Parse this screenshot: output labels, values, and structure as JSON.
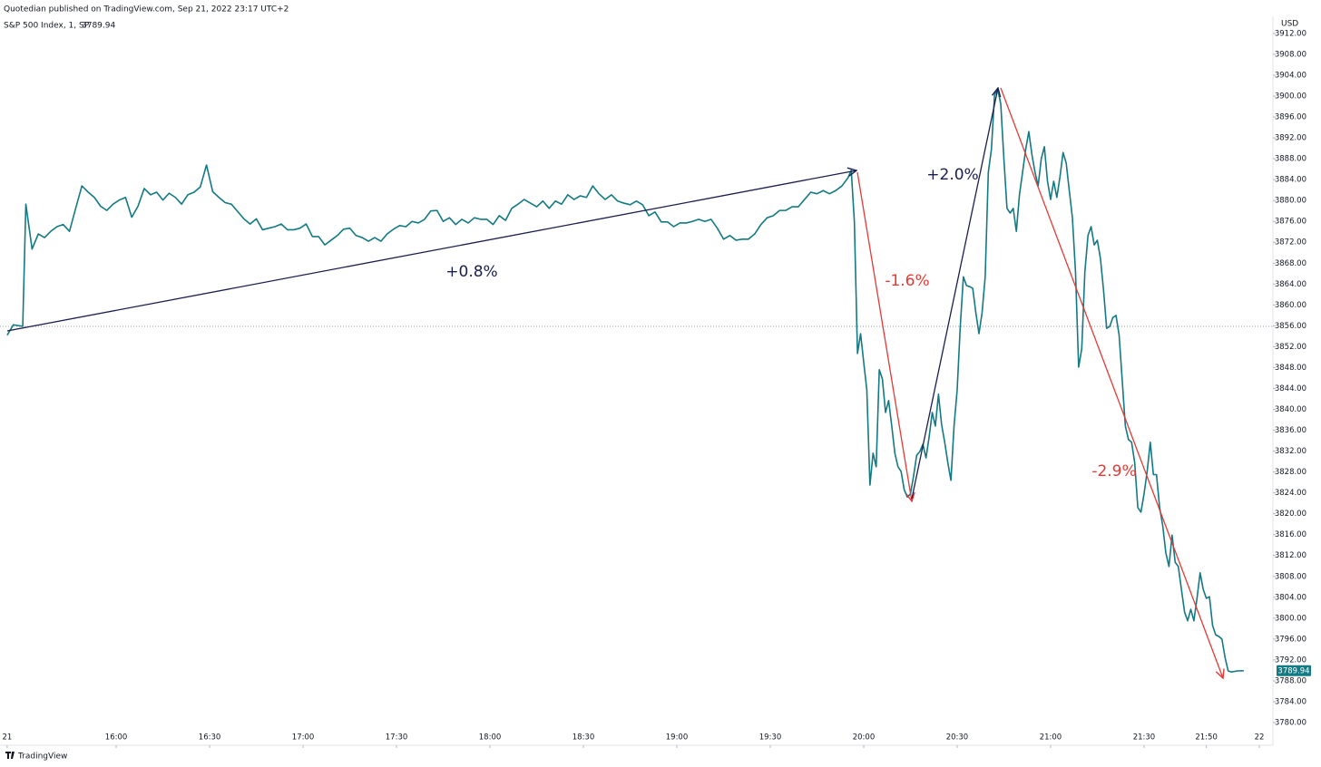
{
  "header": {
    "publisher": "Quotedian published on TradingView.com, Sep 21, 2022 23:17 UTC+2",
    "currency": "USD",
    "logo": "TradingView"
  },
  "chart_data": {
    "type": "line",
    "last_price": 3789.94,
    "last_price_color": "#137a83",
    "reference_value": 3855.9,
    "series": [
      {
        "name": "S&P 500 Index, 1, SP",
        "color": "#137a83",
        "values": [
          3854.2,
          3856.2,
          3855.9,
          3879.3,
          3870.7,
          3873.6,
          3872.9,
          3874.1,
          3875.0,
          3875.4,
          3874.1,
          3878.5,
          3882.8,
          3881.6,
          3880.6,
          3878.9,
          3878.1,
          3879.3,
          3880.1,
          3880.6,
          3876.8,
          3878.9,
          3882.3,
          3881.1,
          3881.6,
          3880.1,
          3881.4,
          3880.6,
          3879.3,
          3881.1,
          3881.6,
          3882.6,
          3886.8,
          3881.7,
          3880.6,
          3879.6,
          3879.3,
          3877.9,
          3876.5,
          3875.5,
          3876.5,
          3874.4,
          3874.7,
          3875.0,
          3875.5,
          3874.4,
          3874.4,
          3874.7,
          3875.5,
          3873.1,
          3873.1,
          3871.5,
          3872.4,
          3873.3,
          3874.5,
          3874.7,
          3873.3,
          3872.9,
          3872.2,
          3872.9,
          3872.2,
          3873.6,
          3874.5,
          3875.2,
          3875.0,
          3876.0,
          3875.7,
          3876.4,
          3878.0,
          3878.1,
          3876.0,
          3876.7,
          3875.4,
          3876.4,
          3875.7,
          3876.7,
          3876.4,
          3876.4,
          3875.4,
          3877.1,
          3876.2,
          3878.5,
          3879.3,
          3880.2,
          3879.5,
          3878.8,
          3879.9,
          3878.5,
          3879.9,
          3879.3,
          3881.1,
          3880.2,
          3880.9,
          3880.6,
          3882.8,
          3881.3,
          3880.2,
          3881.1,
          3879.9,
          3879.5,
          3879.2,
          3879.9,
          3879.2,
          3877.1,
          3877.8,
          3875.9,
          3875.9,
          3875.0,
          3875.7,
          3875.7,
          3876.0,
          3876.4,
          3876.0,
          3876.4,
          3874.7,
          3872.6,
          3873.3,
          3872.4,
          3872.6,
          3872.6,
          3873.6,
          3875.4,
          3876.7,
          3877.1,
          3878.1,
          3878.1,
          3878.8,
          3878.8,
          3880.2,
          3881.6,
          3881.3,
          3881.9,
          3881.3,
          3881.9,
          3882.8,
          3884.4,
          3885.8,
          3875.9,
          3850.7,
          3854.5,
          3849.0,
          3843.7,
          3825.5,
          3831.6,
          3829.0,
          3847.6,
          3845.8,
          3839.4,
          3841.7,
          3836.8,
          3831.6,
          3829.0,
          3828.1,
          3824.6,
          3823.2,
          3823.8,
          3827.2,
          3831.2,
          3831.9,
          3833.3,
          3830.7,
          3834.7,
          3839.4,
          3836.8,
          3842.9,
          3837.1,
          3833.7,
          3829.8,
          3826.4,
          3836.8,
          3843.7,
          3855.9,
          3865.4,
          3863.7,
          3863.5,
          3863.2,
          3858.5,
          3854.5,
          3858.5,
          3865.4,
          3885.4,
          3889.8,
          3900.2,
          3901.4,
          3898.5,
          3888.0,
          3878.5,
          3877.6,
          3878.5,
          3874.1,
          3881.1,
          3885.4,
          3889.8,
          3893.2,
          3888.8,
          3885.4,
          3882.8,
          3888.0,
          3890.3,
          3883.7,
          3880.2,
          3883.7,
          3880.6,
          3884.5,
          3889.2,
          3887.2,
          3881.9,
          3876.7,
          3866.3,
          3848.1,
          3851.6,
          3866.3,
          3873.3,
          3875.0,
          3871.5,
          3872.4,
          3868.9,
          3862.8,
          3855.5,
          3855.9,
          3857.6,
          3858.0,
          3854.2,
          3845.5,
          3836.8,
          3834.2,
          3833.7,
          3829.8,
          3821.2,
          3820.3,
          3823.8,
          3828.1,
          3833.7,
          3827.5,
          3827.5,
          3821.2,
          3817.7,
          3812.5,
          3809.9,
          3815.9,
          3810.7,
          3809.9,
          3805.5,
          3801.2,
          3799.5,
          3801.7,
          3799.5,
          3803.8,
          3808.7,
          3805.5,
          3803.8,
          3804.1,
          3798.6,
          3796.8,
          3796.5,
          3796.0,
          3792.5,
          3789.9,
          3789.7,
          3789.9,
          3789.94
        ]
      }
    ],
    "x": [
      925,
      927,
      930,
      931,
      933,
      935,
      937,
      939,
      941,
      943,
      945,
      947,
      949,
      951,
      953,
      955,
      957,
      959,
      961,
      963,
      965,
      967,
      969,
      971,
      973,
      975,
      977,
      979,
      981,
      983,
      985,
      987,
      989,
      991,
      993,
      995,
      997,
      999,
      1001,
      1003,
      1005,
      1007,
      1009,
      1011,
      1013,
      1015,
      1017,
      1019,
      1021,
      1023,
      1025,
      1027,
      1029,
      1031,
      1033,
      1035,
      1037,
      1039,
      1041,
      1043,
      1045,
      1047,
      1049,
      1051,
      1053,
      1055,
      1057,
      1059,
      1061,
      1063,
      1065,
      1067,
      1069,
      1071,
      1073,
      1075,
      1077,
      1079,
      1081,
      1083,
      1085,
      1087,
      1089,
      1091,
      1093,
      1095,
      1097,
      1099,
      1101,
      1103,
      1105,
      1107,
      1109,
      1111,
      1113,
      1115,
      1117,
      1119,
      1121,
      1123,
      1125,
      1127,
      1129,
      1131,
      1133,
      1135,
      1137,
      1139,
      1141,
      1143,
      1145,
      1147,
      1149,
      1151,
      1153,
      1155,
      1157,
      1159,
      1161,
      1163,
      1165,
      1167,
      1169,
      1171,
      1173,
      1175,
      1177,
      1179,
      1181,
      1183,
      1185,
      1187,
      1189,
      1191,
      1193,
      1195,
      1196,
      1197,
      1198,
      1199,
      1200,
      1201,
      1202,
      1203,
      1204,
      1205,
      1206,
      1207,
      1208,
      1209,
      1210,
      1211,
      1212,
      1213,
      1214,
      1215,
      1216,
      1217,
      1218,
      1219,
      1220,
      1221,
      1222,
      1223,
      1224,
      1225,
      1226,
      1227,
      1228,
      1229,
      1230,
      1231,
      1232,
      1233,
      1234,
      1235,
      1236,
      1237,
      1238,
      1239,
      1240,
      1241,
      1242,
      1243,
      1244,
      1245,
      1246,
      1247,
      1248,
      1249,
      1250,
      1251,
      1252,
      1253,
      1254,
      1255,
      1256,
      1257,
      1258,
      1259,
      1260,
      1261,
      1262,
      1263,
      1264,
      1265,
      1266,
      1267,
      1268,
      1269,
      1270,
      1271,
      1272,
      1273,
      1274,
      1275,
      1276,
      1277,
      1278,
      1279,
      1280,
      1281,
      1282,
      1283,
      1284,
      1285,
      1286,
      1287,
      1288,
      1289,
      1290,
      1291,
      1292,
      1293,
      1294,
      1295,
      1296,
      1297,
      1298,
      1299,
      1300,
      1301,
      1302,
      1303,
      1304,
      1305,
      1306,
      1307,
      1308,
      1309,
      1310,
      1311,
      1312,
      1313,
      1314,
      1315,
      1316,
      1317,
      1318,
      1320,
      1322
    ],
    "xlim": [
      922.7,
      1330.5
    ],
    "xticks": [
      {
        "value": 925,
        "label": "21"
      },
      {
        "value": 960,
        "label": "16:00"
      },
      {
        "value": 990,
        "label": "16:30"
      },
      {
        "value": 1020,
        "label": "17:00"
      },
      {
        "value": 1050,
        "label": "17:30"
      },
      {
        "value": 1080,
        "label": "18:00"
      },
      {
        "value": 1110,
        "label": "18:30"
      },
      {
        "value": 1140,
        "label": "19:00"
      },
      {
        "value": 1170,
        "label": "19:30"
      },
      {
        "value": 1200,
        "label": "20:00"
      },
      {
        "value": 1230,
        "label": "20:30"
      },
      {
        "value": 1260,
        "label": "21:00"
      },
      {
        "value": 1290,
        "label": "21:30"
      },
      {
        "value": 1310,
        "label": "21:50"
      },
      {
        "value": 1327,
        "label": "22"
      }
    ],
    "ylim": [
      3775.66,
      3914.07
    ],
    "yticks": [
      {
        "value": 3780,
        "label": "3780.00"
      },
      {
        "value": 3784,
        "label": "3784.00"
      },
      {
        "value": 3788,
        "label": "3788.00"
      },
      {
        "value": 3792,
        "label": "3792.00"
      },
      {
        "value": 3796,
        "label": "3796.00"
      },
      {
        "value": 3800,
        "label": "3800.00"
      },
      {
        "value": 3804,
        "label": "3804.00"
      },
      {
        "value": 3808,
        "label": "3808.00"
      },
      {
        "value": 3812,
        "label": "3812.00"
      },
      {
        "value": 3816,
        "label": "3816.00"
      },
      {
        "value": 3820,
        "label": "3820.00"
      },
      {
        "value": 3824,
        "label": "3824.00"
      },
      {
        "value": 3828,
        "label": "3828.00"
      },
      {
        "value": 3832,
        "label": "3832.00"
      },
      {
        "value": 3836,
        "label": "3836.00"
      },
      {
        "value": 3840,
        "label": "3840.00"
      },
      {
        "value": 3844,
        "label": "3844.00"
      },
      {
        "value": 3848,
        "label": "3848.00"
      },
      {
        "value": 3852,
        "label": "3852.00"
      },
      {
        "value": 3856,
        "label": "3856.00"
      },
      {
        "value": 3860,
        "label": "3860.00"
      },
      {
        "value": 3864,
        "label": "3864.00"
      },
      {
        "value": 3868,
        "label": "3868.00"
      },
      {
        "value": 3872,
        "label": "3872.00"
      },
      {
        "value": 3876,
        "label": "3876.00"
      },
      {
        "value": 3880,
        "label": "3880.00"
      },
      {
        "value": 3884,
        "label": "3884.00"
      },
      {
        "value": 3888,
        "label": "3888.00"
      },
      {
        "value": 3892,
        "label": "3892.00"
      },
      {
        "value": 3896,
        "label": "3896.00"
      },
      {
        "value": 3900,
        "label": "3900.00"
      },
      {
        "value": 3904,
        "label": "3904.00"
      },
      {
        "value": 3908,
        "label": "3908.00"
      },
      {
        "value": 3912,
        "label": "3912.00"
      }
    ],
    "annotations": [
      {
        "text": "+0.8%",
        "color": "#1b1f4f"
      },
      {
        "text": "-1.6%",
        "color": "#e53935"
      },
      {
        "text": "+2.0%",
        "color": "#1b1f4f"
      },
      {
        "text": "-2.9%",
        "color": "#e53935"
      }
    ]
  }
}
